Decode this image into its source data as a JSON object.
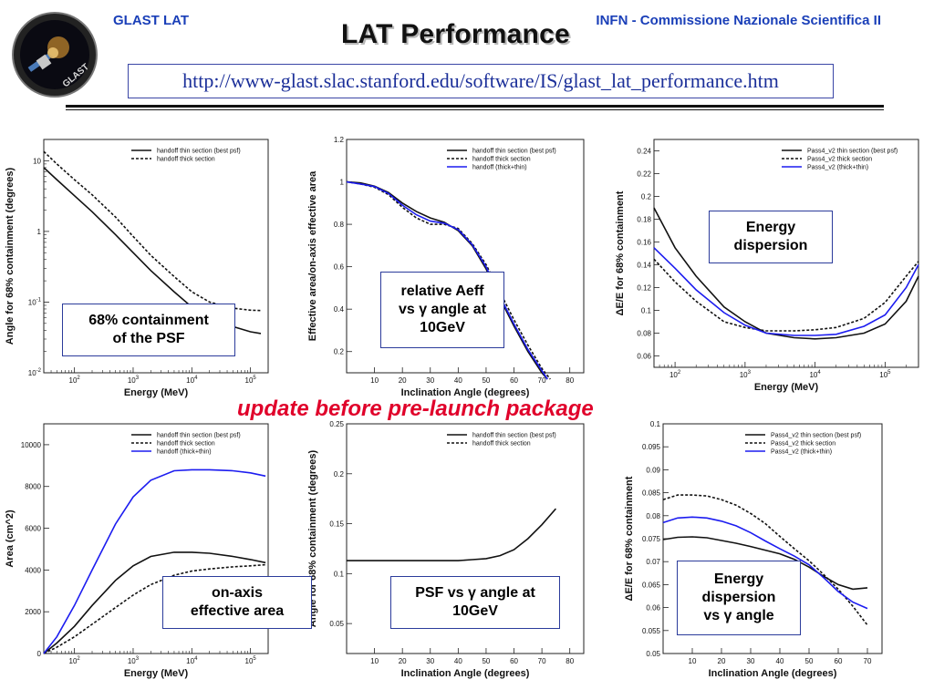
{
  "header": {
    "left": "GLAST LAT",
    "right": "INFN - Commissione Nazionale Scientifica II",
    "title": "LAT Performance",
    "url": "http://www-glast.slac.stanford.edu/software/IS/glast_lat_performance.htm"
  },
  "update_note": "update before pre-launch package",
  "logo_text": "GLAST",
  "colors": {
    "header_blue": "#1a3fb8",
    "update_red": "#e0002a",
    "series_blue": "#1c1cf0"
  },
  "chart_data": [
    {
      "type": "line",
      "id": "psf-vs-energy",
      "callout": [
        "68% containment",
        "of the PSF"
      ],
      "xlabel": "Energy (MeV)",
      "ylabel": "Angle for 68% containment (degrees)",
      "xscale": "log",
      "yscale": "log",
      "xlim": [
        30,
        200000
      ],
      "ylim": [
        0.01,
        20
      ],
      "xticks": [
        100,
        1000,
        10000,
        100000
      ],
      "xtick_labels": [
        [
          "10",
          "2"
        ],
        [
          "10",
          "3"
        ],
        [
          "10",
          "4"
        ],
        [
          "10",
          "5"
        ]
      ],
      "yticks": [
        0.01,
        0.1,
        1,
        10
      ],
      "ytick_labels": [
        [
          "10",
          "-2"
        ],
        [
          "10",
          "-1"
        ],
        [
          "1",
          ""
        ],
        [
          "10",
          ""
        ]
      ],
      "legend_position": "top-right",
      "series": [
        {
          "name": "handoff thin section (best psf)",
          "style": "solid",
          "color": "#111111",
          "x": [
            30,
            50,
            100,
            200,
            500,
            1000,
            2000,
            5000,
            10000,
            20000,
            50000,
            100000,
            150000
          ],
          "y": [
            8.0,
            5.4,
            3.2,
            1.9,
            0.9,
            0.5,
            0.28,
            0.14,
            0.085,
            0.06,
            0.045,
            0.038,
            0.036
          ]
        },
        {
          "name": "handoff thick section",
          "style": "dashed",
          "color": "#111111",
          "x": [
            30,
            50,
            100,
            200,
            500,
            1000,
            2000,
            5000,
            10000,
            20000,
            50000,
            100000,
            150000
          ],
          "y": [
            13.5,
            9.0,
            5.4,
            3.3,
            1.6,
            0.85,
            0.46,
            0.23,
            0.14,
            0.1,
            0.082,
            0.077,
            0.076
          ]
        }
      ]
    },
    {
      "type": "line",
      "id": "aeff-vs-angle",
      "callout": [
        "relative Aeff",
        "vs γ angle at",
        "10GeV"
      ],
      "xlabel": "Inclination Angle (degrees)",
      "ylabel": "Effective area/on-axis effective area",
      "xlim": [
        0,
        85
      ],
      "ylim": [
        0.1,
        1.2
      ],
      "xticks": [
        10,
        20,
        30,
        40,
        50,
        60,
        70,
        80
      ],
      "yticks": [
        0.2,
        0.4,
        0.6,
        0.8,
        1,
        1.2
      ],
      "ytick_labels": [
        "0.2",
        "0.4",
        "0.6",
        "0.8",
        "1",
        "1.2"
      ],
      "legend_position": "top-right",
      "series": [
        {
          "name": "handoff thin section (best psf)",
          "style": "solid",
          "color": "#111111",
          "x": [
            0,
            5,
            10,
            15,
            20,
            25,
            30,
            35,
            40,
            45,
            50,
            55,
            60,
            65,
            70,
            72
          ],
          "y": [
            1.0,
            0.995,
            0.98,
            0.95,
            0.9,
            0.86,
            0.83,
            0.81,
            0.77,
            0.7,
            0.59,
            0.45,
            0.32,
            0.2,
            0.1,
            0.07
          ]
        },
        {
          "name": "handoff thick section",
          "style": "dashed",
          "color": "#111111",
          "x": [
            0,
            5,
            10,
            15,
            20,
            25,
            30,
            35,
            40,
            45,
            50,
            55,
            60,
            65,
            70,
            73
          ],
          "y": [
            1.0,
            0.99,
            0.975,
            0.94,
            0.88,
            0.83,
            0.8,
            0.8,
            0.78,
            0.71,
            0.61,
            0.48,
            0.35,
            0.23,
            0.12,
            0.07
          ]
        },
        {
          "name": "handoff (thick+thin)",
          "style": "solid",
          "color": "#1c1cf0",
          "x": [
            0,
            5,
            10,
            15,
            20,
            25,
            30,
            35,
            40,
            45,
            50,
            55,
            60,
            65,
            70,
            72
          ],
          "y": [
            1.0,
            0.99,
            0.978,
            0.945,
            0.89,
            0.845,
            0.815,
            0.805,
            0.775,
            0.705,
            0.6,
            0.46,
            0.33,
            0.21,
            0.11,
            0.07
          ]
        }
      ]
    },
    {
      "type": "line",
      "id": "edisp-vs-energy",
      "callout": [
        "Energy",
        "dispersion"
      ],
      "xlabel": "Energy (MeV)",
      "ylabel": "ΔE/E for 68% containment",
      "xscale": "log",
      "xlim": [
        50,
        300000
      ],
      "ylim": [
        0.05,
        0.25
      ],
      "xticks": [
        100,
        1000,
        10000,
        100000
      ],
      "xtick_labels": [
        [
          "10",
          "2"
        ],
        [
          "10",
          "3"
        ],
        [
          "10",
          "4"
        ],
        [
          "10",
          "5"
        ]
      ],
      "yticks": [
        0.06,
        0.08,
        0.1,
        0.12,
        0.14,
        0.16,
        0.18,
        0.2,
        0.22,
        0.24
      ],
      "ytick_labels": [
        "0.06",
        "0.08",
        "0.1",
        "0.12",
        "0.14",
        "0.16",
        "0.18",
        "0.2",
        "0.22",
        "0.24"
      ],
      "legend_position": "top-right",
      "series": [
        {
          "name": "Pass4_v2 thin section (best psf)",
          "style": "solid",
          "color": "#111111",
          "x": [
            50,
            100,
            200,
            500,
            1000,
            2000,
            5000,
            10000,
            20000,
            50000,
            100000,
            200000,
            300000
          ],
          "y": [
            0.19,
            0.155,
            0.13,
            0.103,
            0.09,
            0.08,
            0.076,
            0.075,
            0.076,
            0.08,
            0.088,
            0.108,
            0.13
          ]
        },
        {
          "name": "Pass4_v2 thick section",
          "style": "dashed",
          "color": "#111111",
          "x": [
            50,
            100,
            200,
            500,
            1000,
            2000,
            5000,
            10000,
            20000,
            50000,
            100000,
            200000,
            300000
          ],
          "y": [
            0.145,
            0.125,
            0.108,
            0.09,
            0.085,
            0.082,
            0.082,
            0.083,
            0.085,
            0.093,
            0.107,
            0.13,
            0.143
          ]
        },
        {
          "name": "Pass4_v2 (thick+thin)",
          "style": "solid",
          "color": "#1c1cf0",
          "x": [
            50,
            100,
            200,
            500,
            1000,
            2000,
            5000,
            10000,
            20000,
            50000,
            100000,
            200000,
            300000
          ],
          "y": [
            0.155,
            0.137,
            0.118,
            0.098,
            0.087,
            0.08,
            0.078,
            0.078,
            0.079,
            0.086,
            0.096,
            0.12,
            0.14
          ]
        }
      ]
    },
    {
      "type": "line",
      "id": "aeff-vs-energy",
      "callout": [
        "on-axis",
        "effective area"
      ],
      "xlabel": "Energy (MeV)",
      "ylabel": "Area (cm^2)",
      "xscale": "log",
      "xlim": [
        30,
        200000
      ],
      "ylim": [
        0,
        11000
      ],
      "xticks": [
        100,
        1000,
        10000,
        100000
      ],
      "xtick_labels": [
        [
          "10",
          "2"
        ],
        [
          "10",
          "3"
        ],
        [
          "10",
          "4"
        ],
        [
          "10",
          "5"
        ]
      ],
      "yticks": [
        0,
        2000,
        4000,
        6000,
        8000,
        10000
      ],
      "ytick_labels": [
        "0",
        "2000",
        "4000",
        "6000",
        "8000",
        "10000"
      ],
      "legend_position": "top-right",
      "series": [
        {
          "name": "handoff thin section (best psf)",
          "style": "solid",
          "color": "#111111",
          "x": [
            30,
            50,
            100,
            200,
            500,
            1000,
            2000,
            5000,
            10000,
            20000,
            50000,
            100000,
            180000
          ],
          "y": [
            0,
            500,
            1300,
            2300,
            3500,
            4200,
            4650,
            4850,
            4850,
            4800,
            4650,
            4500,
            4350
          ]
        },
        {
          "name": "handoff thick section",
          "style": "dashed",
          "color": "#111111",
          "x": [
            30,
            50,
            100,
            200,
            500,
            1000,
            2000,
            5000,
            10000,
            20000,
            50000,
            100000,
            180000
          ],
          "y": [
            0,
            300,
            800,
            1400,
            2200,
            2800,
            3300,
            3750,
            3950,
            4050,
            4150,
            4200,
            4250
          ]
        },
        {
          "name": "handoff (thick+thin)",
          "style": "solid",
          "color": "#1c1cf0",
          "x": [
            30,
            50,
            100,
            200,
            500,
            1000,
            2000,
            5000,
            10000,
            20000,
            50000,
            100000,
            180000
          ],
          "y": [
            0,
            800,
            2300,
            4000,
            6200,
            7500,
            8300,
            8750,
            8800,
            8800,
            8750,
            8650,
            8500
          ]
        }
      ]
    },
    {
      "type": "line",
      "id": "psf-vs-angle",
      "callout": [
        "PSF vs γ angle at",
        "10GeV"
      ],
      "xlabel": "Inclination Angle (degrees)",
      "ylabel": "Angle for 68% containment (degrees)",
      "xlim": [
        0,
        85
      ],
      "ylim": [
        0.02,
        0.25
      ],
      "xticks": [
        10,
        20,
        30,
        40,
        50,
        60,
        70,
        80
      ],
      "yticks": [
        0.05,
        0.1,
        0.15,
        0.2,
        0.25
      ],
      "ytick_labels": [
        "0.05",
        "0.1",
        "0.15",
        "0.2",
        "0.25"
      ],
      "legend_position": "top-right",
      "series": [
        {
          "name": "handoff thin section (best psf)",
          "style": "solid",
          "color": "#111111",
          "x": [
            0,
            10,
            20,
            30,
            40,
            45,
            50,
            55,
            60,
            65,
            70,
            75
          ],
          "y": [
            0.113,
            0.113,
            0.113,
            0.113,
            0.113,
            0.114,
            0.115,
            0.118,
            0.124,
            0.135,
            0.149,
            0.165
          ]
        },
        {
          "name": "handoff thick section",
          "style": "dashed",
          "color": "#111111",
          "x": [],
          "y": []
        }
      ]
    },
    {
      "type": "line",
      "id": "edisp-vs-angle",
      "callout": [
        "Energy",
        "dispersion",
        "vs γ angle"
      ],
      "xlabel": "Inclination Angle (degrees)",
      "ylabel": "ΔE/E for 68% containment",
      "xlim": [
        0,
        75
      ],
      "ylim": [
        0.05,
        0.1
      ],
      "xticks": [
        10,
        20,
        30,
        40,
        50,
        60,
        70
      ],
      "yticks": [
        0.05,
        0.055,
        0.06,
        0.065,
        0.07,
        0.075,
        0.08,
        0.085,
        0.09,
        0.095,
        0.1
      ],
      "ytick_labels": [
        "0.05",
        "0.055",
        "0.06",
        "0.065",
        "0.07",
        "0.075",
        "0.08",
        "0.085",
        "0.09",
        "0.095",
        "0.1"
      ],
      "legend_position": "top-right",
      "series": [
        {
          "name": "Pass4_v2 thin section (best psf)",
          "style": "solid",
          "color": "#111111",
          "x": [
            0,
            5,
            10,
            15,
            20,
            25,
            30,
            35,
            40,
            45,
            50,
            55,
            60,
            65,
            70
          ],
          "y": [
            0.0748,
            0.0753,
            0.0754,
            0.0752,
            0.0746,
            0.074,
            0.0733,
            0.0725,
            0.0717,
            0.0705,
            0.0688,
            0.0668,
            0.065,
            0.064,
            0.0643
          ]
        },
        {
          "name": "Pass4_v2 thick section",
          "style": "dashed",
          "color": "#111111",
          "x": [
            0,
            5,
            10,
            15,
            20,
            25,
            30,
            35,
            40,
            45,
            50,
            55,
            60,
            65,
            70
          ],
          "y": [
            0.0835,
            0.0845,
            0.0845,
            0.0843,
            0.0835,
            0.0823,
            0.0805,
            0.0783,
            0.0755,
            0.0728,
            0.0702,
            0.0672,
            0.064,
            0.0603,
            0.0562
          ]
        },
        {
          "name": "Pass4_v2 (thick+thin)",
          "style": "solid",
          "color": "#1c1cf0",
          "x": [
            0,
            5,
            10,
            15,
            20,
            25,
            30,
            35,
            40,
            45,
            50,
            55,
            60,
            65,
            70
          ],
          "y": [
            0.0785,
            0.0795,
            0.0797,
            0.0795,
            0.0788,
            0.0778,
            0.0763,
            0.0745,
            0.0728,
            0.0712,
            0.0693,
            0.0665,
            0.0635,
            0.0612,
            0.0598
          ]
        }
      ]
    }
  ]
}
